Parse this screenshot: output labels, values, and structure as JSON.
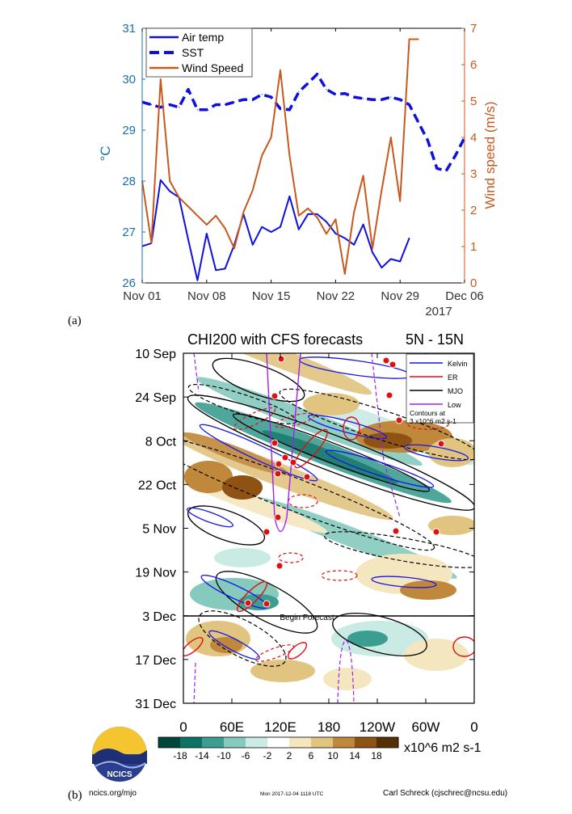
{
  "colors": {
    "air": "#1010dd",
    "sst": "#1010dd",
    "wind": "#c8581e",
    "left_axis": "#1a6fae",
    "right_axis": "#c8581e",
    "kelvin": "#1515ee",
    "er": "#e01010",
    "mjo": "#000000",
    "low": "#a020f0"
  },
  "panel_a": {
    "label": "(a)",
    "year_label": "2017"
  },
  "panel_b": {
    "label": "(b)",
    "title": "CHI200 with CFS forecasts",
    "subtitle": "5N - 15N",
    "begin_forecast": "Begin Forecast",
    "legend": {
      "kelvin": "Kelvin",
      "er": "ER",
      "mjo": "MJO",
      "low": "Low",
      "contours_l1": "Contours at",
      "contours_l2": "3 x10^6 m2 s-1"
    },
    "colorbar_unit": "x10^6 m2 s-1",
    "logo_text": "NCICS",
    "footer_left": "ncics.org/mjo",
    "footer_mid": "Mon 2017-12-04 1118 UTC",
    "footer_right": "Carl Schreck (cjschrec@ncsu.edu)"
  },
  "chart_data": [
    {
      "type": "line",
      "title": "",
      "xlabel": "",
      "ylabel": "°C",
      "y2label": "Wind speed (m/s)",
      "x_ticks": [
        "Nov 01",
        "Nov 08",
        "Nov 15",
        "Nov 22",
        "Nov 29",
        "Dec 06"
      ],
      "x_unit": "day of Nov 2017",
      "xlim": [
        1,
        36
      ],
      "ylim": [
        26,
        31
      ],
      "y_ticks": [
        "26",
        "27",
        "28",
        "29",
        "30",
        "31"
      ],
      "y2lim": [
        0,
        7
      ],
      "y2_ticks": [
        "0",
        "1",
        "2",
        "3",
        "4",
        "5",
        "6",
        "7"
      ],
      "legend_position": "top-left",
      "series": [
        {
          "name": "Air temp",
          "axis": "left",
          "style": "solid",
          "x": [
            1,
            2,
            3,
            4,
            5,
            6,
            7,
            8,
            9,
            10,
            11,
            12,
            13,
            14,
            15,
            16,
            17,
            18,
            19,
            20,
            21,
            22,
            23,
            24,
            25,
            26,
            27,
            28,
            29,
            30
          ],
          "y": [
            26.72,
            26.78,
            28.02,
            27.8,
            27.68,
            26.85,
            26.05,
            26.97,
            26.25,
            26.28,
            26.75,
            27.35,
            26.75,
            27.1,
            27.0,
            27.1,
            27.7,
            27.05,
            27.35,
            27.35,
            27.2,
            26.97,
            26.88,
            26.75,
            27.15,
            26.6,
            26.3,
            26.47,
            26.42,
            26.88
          ]
        },
        {
          "name": "SST",
          "axis": "left",
          "style": "dashed",
          "x": [
            1,
            2,
            3,
            4,
            5,
            6,
            7,
            8,
            9,
            10,
            11,
            12,
            13,
            14,
            15,
            16,
            17,
            18,
            19,
            20,
            21,
            22,
            23,
            24,
            25,
            26,
            27,
            28,
            29,
            30,
            31,
            32,
            33,
            34,
            35,
            36
          ],
          "y": [
            29.55,
            29.5,
            29.45,
            29.5,
            29.45,
            29.8,
            29.4,
            29.4,
            29.5,
            29.5,
            29.55,
            29.6,
            29.6,
            29.7,
            29.65,
            29.42,
            29.4,
            29.75,
            29.92,
            30.1,
            29.8,
            29.7,
            29.72,
            29.65,
            29.62,
            29.6,
            29.6,
            29.65,
            29.6,
            29.5,
            29.15,
            28.8,
            28.25,
            28.2,
            28.5,
            28.85
          ]
        },
        {
          "name": "Wind Speed",
          "axis": "right",
          "style": "solid",
          "x": [
            1,
            2,
            3,
            4,
            5,
            6,
            7,
            8,
            9,
            10,
            11,
            12,
            13,
            14,
            15,
            16,
            17,
            18,
            19,
            20,
            21,
            22,
            23,
            24,
            25,
            26,
            27,
            28,
            29,
            30,
            31
          ],
          "y": [
            2.8,
            1.1,
            5.6,
            2.8,
            2.35,
            2.1,
            1.85,
            1.6,
            1.85,
            1.5,
            0.95,
            1.95,
            2.55,
            3.5,
            4.0,
            5.85,
            3.5,
            1.85,
            2.05,
            1.8,
            1.35,
            1.75,
            0.25,
            1.95,
            2.95,
            0.95,
            2.55,
            4.0,
            2.25,
            6.7,
            6.7
          ]
        }
      ]
    },
    {
      "type": "heatmap",
      "title": "CHI200 with CFS forecasts",
      "subtitle": "5N - 15N",
      "xlabel": "",
      "ylabel": "",
      "x_ticks": [
        "0",
        "60E",
        "120E",
        "180",
        "120W",
        "60W",
        "0"
      ],
      "y_ticks": [
        "10 Sep",
        "24 Sep",
        "8 Oct",
        "22 Oct",
        "5 Nov",
        "19 Nov",
        "3 Dec",
        "17 Dec",
        "31 Dec"
      ],
      "forecast_start": "3 Dec",
      "colorbar_ticks": [
        "-18",
        "-14",
        "-10",
        "-6",
        "-2",
        "2",
        "6",
        "10",
        "14",
        "18"
      ],
      "colorbar_colors": [
        "#01463a",
        "#0b7266",
        "#3c9e91",
        "#86c9bd",
        "#c9ebe4",
        "#ffffff",
        "#f4e7bf",
        "#e0c47f",
        "#c0883a",
        "#8e5213",
        "#543005"
      ],
      "colorbar_unit": "x10^6 m2 s-1",
      "legend": [
        "Kelvin",
        "ER",
        "MJO",
        "Low"
      ]
    }
  ]
}
